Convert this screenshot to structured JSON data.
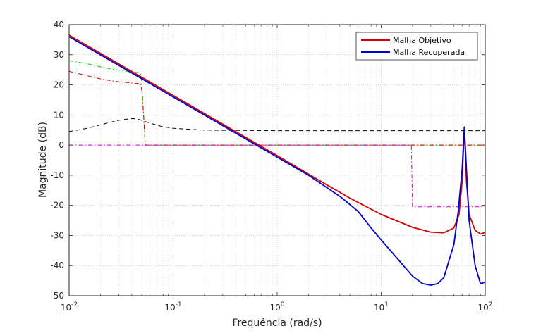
{
  "chart_data": {
    "type": "line",
    "title": "",
    "xlabel": "Frequência (rad/s)",
    "ylabel": "Magnitude (dB)",
    "xscale": "log",
    "xlim": [
      0.01,
      100
    ],
    "ylim": [
      -50,
      40
    ],
    "x_ticks": [
      {
        "value": 0.01,
        "base": "10",
        "exp": "-2"
      },
      {
        "value": 0.1,
        "base": "10",
        "exp": "-1"
      },
      {
        "value": 1,
        "base": "10",
        "exp": "0"
      },
      {
        "value": 10,
        "base": "10",
        "exp": "1"
      },
      {
        "value": 100,
        "base": "10",
        "exp": "2"
      }
    ],
    "y_ticks": [
      "-50",
      "-40",
      "-30",
      "-20",
      "-10",
      "0",
      "10",
      "20",
      "30",
      "40"
    ],
    "grid": true,
    "legend": {
      "position": "top-right",
      "entries": [
        "Malha Objetivo",
        "Malha Recuperada"
      ]
    },
    "series": [
      {
        "name": "Malha Objetivo",
        "color": "#d00000",
        "style": "solid",
        "points": [
          [
            0.01,
            36.5
          ],
          [
            0.1,
            16.5
          ],
          [
            1,
            -3.5
          ],
          [
            3,
            -13.2
          ],
          [
            5,
            -17.6
          ],
          [
            10,
            -23.0
          ],
          [
            20,
            -27.3
          ],
          [
            30,
            -28.9
          ],
          [
            40,
            -29.1
          ],
          [
            50,
            -27.5
          ],
          [
            56,
            -23.0
          ],
          [
            60,
            -12.0
          ],
          [
            63,
            6.0
          ],
          [
            66,
            -12.0
          ],
          [
            70,
            -23.0
          ],
          [
            80,
            -28.3
          ],
          [
            90,
            -29.5
          ],
          [
            100,
            -29.0
          ]
        ]
      },
      {
        "name": "Malha Recuperada",
        "color": "#0000cc",
        "style": "solid",
        "points": [
          [
            0.01,
            36.0
          ],
          [
            0.1,
            16.0
          ],
          [
            1,
            -4.0
          ],
          [
            2,
            -10.0
          ],
          [
            4,
            -17.0
          ],
          [
            6,
            -22.0
          ],
          [
            8,
            -27.5
          ],
          [
            10,
            -31.5
          ],
          [
            15,
            -38.5
          ],
          [
            20,
            -43.5
          ],
          [
            25,
            -46.0
          ],
          [
            30,
            -46.5
          ],
          [
            35,
            -46.0
          ],
          [
            40,
            -44.0
          ],
          [
            50,
            -33.0
          ],
          [
            55,
            -22.0
          ],
          [
            60,
            -8.0
          ],
          [
            63,
            6.0
          ],
          [
            66,
            -8.0
          ],
          [
            70,
            -25.0
          ],
          [
            80,
            -40.0
          ],
          [
            90,
            -46.0
          ],
          [
            100,
            -45.5
          ]
        ]
      },
      {
        "color": "#00cc00",
        "style": "dashdot",
        "points": [
          [
            0.01,
            28.0
          ],
          [
            0.015,
            27.0
          ],
          [
            0.02,
            26.0
          ],
          [
            0.025,
            25.3
          ],
          [
            0.03,
            24.9
          ],
          [
            0.035,
            24.6
          ],
          [
            0.04,
            24.3
          ],
          [
            0.045,
            24.1
          ],
          [
            0.048,
            24.0
          ],
          [
            0.049,
            23.5
          ],
          [
            0.05,
            20.5
          ],
          [
            0.052,
            10.0
          ],
          [
            0.054,
            0.0
          ],
          [
            1,
            0.0
          ],
          [
            100,
            0.0
          ]
        ]
      },
      {
        "color": "#d00000",
        "style": "dashdot",
        "points": [
          [
            0.01,
            24.5
          ],
          [
            0.015,
            23.0
          ],
          [
            0.02,
            22.0
          ],
          [
            0.025,
            21.4
          ],
          [
            0.03,
            21.0
          ],
          [
            0.035,
            20.8
          ],
          [
            0.04,
            20.6
          ],
          [
            0.045,
            20.5
          ],
          [
            0.048,
            20.5
          ],
          [
            0.049,
            20.0
          ],
          [
            0.05,
            18.0
          ],
          [
            0.052,
            10.0
          ],
          [
            0.054,
            0.0
          ],
          [
            1,
            0.0
          ],
          [
            100,
            0.0
          ]
        ]
      },
      {
        "color": "#000000",
        "style": "dashed",
        "points": [
          [
            0.01,
            4.5
          ],
          [
            0.015,
            5.6
          ],
          [
            0.02,
            6.7
          ],
          [
            0.025,
            7.6
          ],
          [
            0.03,
            8.2
          ],
          [
            0.035,
            8.6
          ],
          [
            0.04,
            8.8
          ],
          [
            0.045,
            8.7
          ],
          [
            0.05,
            8.2
          ],
          [
            0.06,
            7.3
          ],
          [
            0.07,
            6.6
          ],
          [
            0.08,
            6.1
          ],
          [
            0.1,
            5.6
          ],
          [
            0.15,
            5.2
          ],
          [
            0.2,
            5.0
          ],
          [
            0.3,
            4.9
          ],
          [
            1,
            4.8
          ],
          [
            10,
            4.8
          ],
          [
            100,
            4.8
          ]
        ]
      },
      {
        "color": "#cc00cc",
        "style": "dashdot",
        "points": [
          [
            0.01,
            0.0
          ],
          [
            1,
            0.0
          ],
          [
            10,
            0.0
          ],
          [
            19.5,
            0.0
          ],
          [
            20,
            -20.5
          ],
          [
            30,
            -20.5
          ],
          [
            100,
            -20.5
          ]
        ]
      }
    ]
  }
}
